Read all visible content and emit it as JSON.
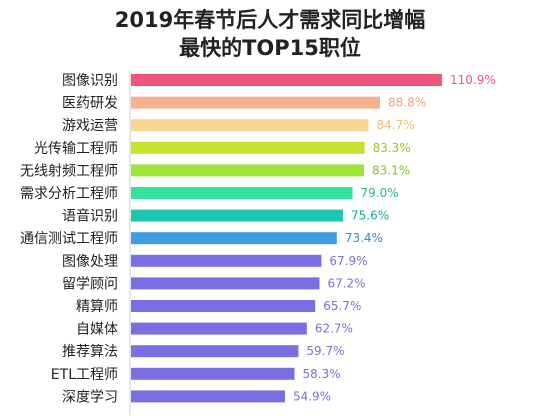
{
  "title_line1": "2019年春节后人才需求同比增幅",
  "title_line2": "最快的TOP15职位",
  "chart_data": {
    "type": "bar",
    "orientation": "horizontal",
    "title": "2019年春节后人才需求同比增幅最快的TOP15职位",
    "categories": [
      "图像识别",
      "医药研发",
      "游戏运营",
      "光传输工程师",
      "无线射频工程师",
      "需求分析工程师",
      "语音识别",
      "通信测试工程师",
      "图像处理",
      "留学顾问",
      "精算师",
      "自媒体",
      "推荐算法",
      "ETL工程师",
      "深度学习"
    ],
    "values": [
      110.9,
      88.8,
      84.7,
      83.3,
      83.1,
      79.0,
      75.6,
      73.4,
      67.9,
      67.2,
      65.7,
      62.7,
      59.7,
      58.3,
      54.9
    ],
    "labels": [
      "110.9%",
      "88.8%",
      "84.7%",
      "83.3%",
      "83.1%",
      "79.0%",
      "75.6%",
      "73.4%",
      "67.9%",
      "67.2%",
      "65.7%",
      "62.7%",
      "59.7%",
      "58.3%",
      "54.9%"
    ],
    "colors": [
      "#f0577a",
      "#f7b191",
      "#f9d58f",
      "#c6e12e",
      "#9ee53a",
      "#35e29a",
      "#1ec6b2",
      "#3f9ee3",
      "#7a6fe2",
      "#7a6fe2",
      "#7a6fe2",
      "#7a6fe2",
      "#7a6fe2",
      "#7a6fe2",
      "#7a6fe2"
    ],
    "label_colors": [
      "#f0577a",
      "#f0a07e",
      "#f0c070",
      "#9fbf20",
      "#7fc42a",
      "#22c07f",
      "#13a898",
      "#2e8bd0",
      "#7a6fe2",
      "#7a6fe2",
      "#7a6fe2",
      "#7a6fe2",
      "#7a6fe2",
      "#7a6fe2",
      "#7a6fe2"
    ],
    "xlim": [
      0,
      110.9
    ],
    "grid": false,
    "legend": "none"
  }
}
